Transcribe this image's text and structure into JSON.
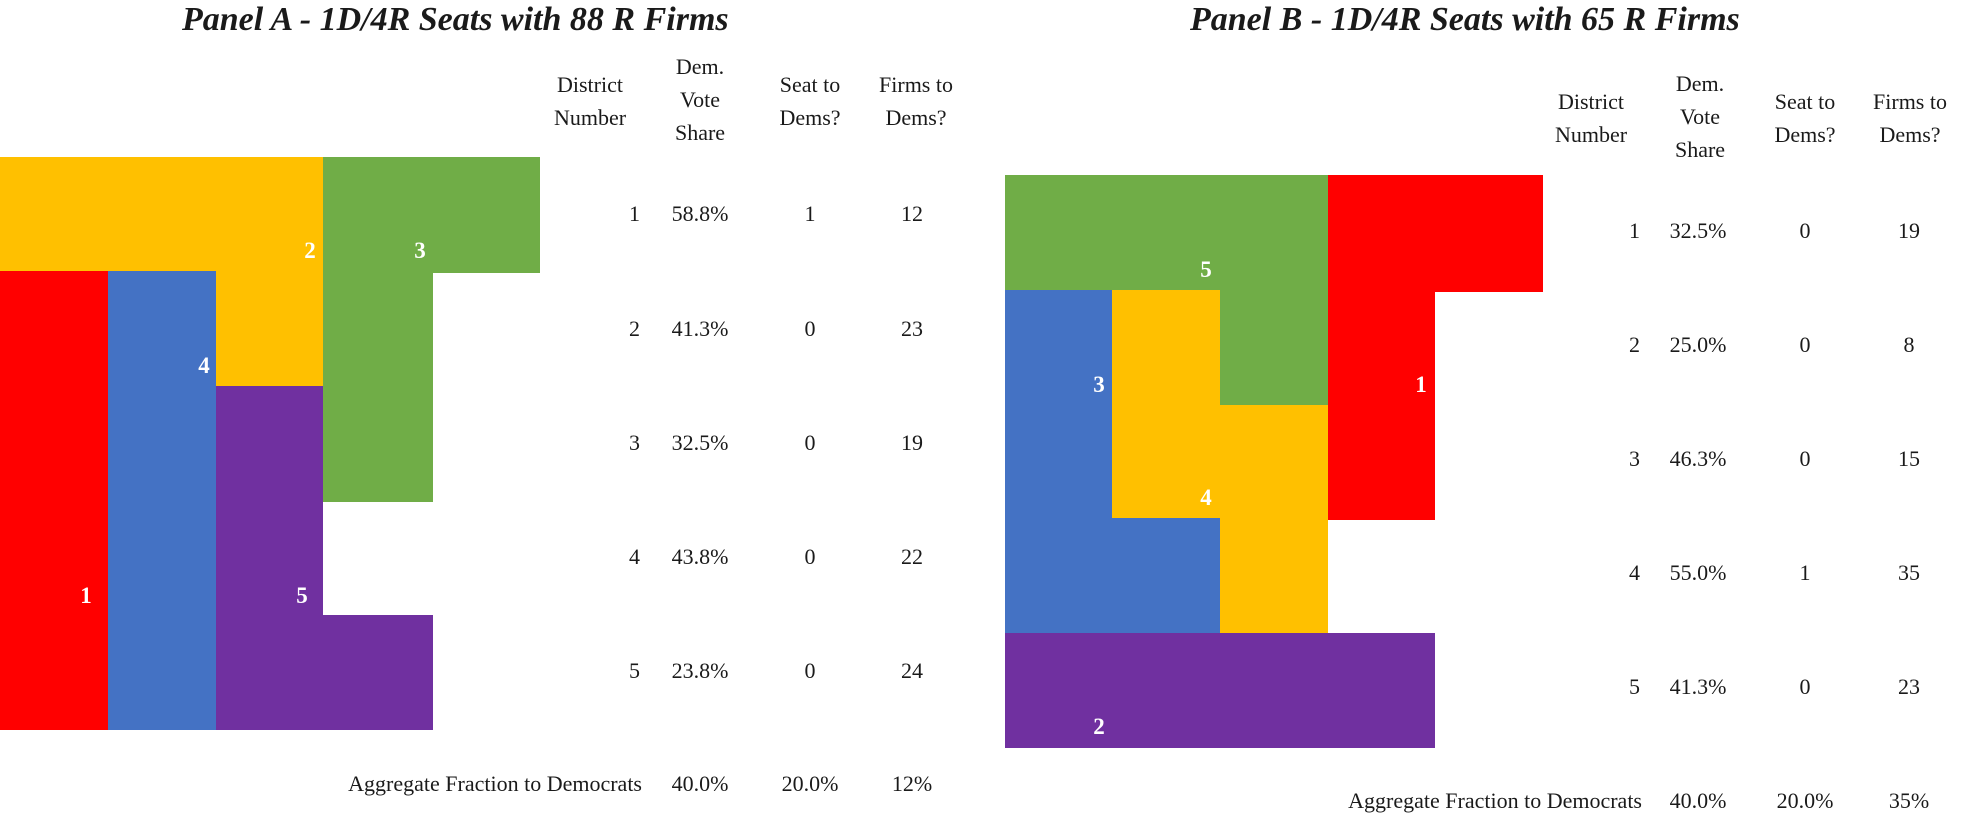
{
  "panels": [
    {
      "id": "A",
      "title": "Panel A - 1D/4R Seats with 88 R Firms",
      "headers": {
        "district": [
          "District",
          "Number"
        ],
        "vote": [
          "Dem.",
          "Vote",
          "Share"
        ],
        "seat": [
          "Seat to",
          "Dems?"
        ],
        "firms": [
          "Firms to",
          "Dems?"
        ]
      },
      "rows": [
        {
          "district": "1",
          "vote": "58.8%",
          "seat": "1",
          "firms": "12"
        },
        {
          "district": "2",
          "vote": "41.3%",
          "seat": "0",
          "firms": "23"
        },
        {
          "district": "3",
          "vote": "32.5%",
          "seat": "0",
          "firms": "19"
        },
        {
          "district": "4",
          "vote": "43.8%",
          "seat": "0",
          "firms": "22"
        },
        {
          "district": "5",
          "vote": "23.8%",
          "seat": "0",
          "firms": "24"
        }
      ],
      "aggregate": {
        "label": "Aggregate Fraction to Democrats",
        "vote": "40.0%",
        "seat": "20.0%",
        "firms": "12%"
      },
      "districts": [
        {
          "label": "1",
          "color": "#FF0000"
        },
        {
          "label": "2",
          "color": "#FFC000"
        },
        {
          "label": "3",
          "color": "#70AD47"
        },
        {
          "label": "4",
          "color": "#4472C4"
        },
        {
          "label": "5",
          "color": "#7030A0"
        }
      ]
    },
    {
      "id": "B",
      "title": "Panel B - 1D/4R Seats with 65 R Firms",
      "headers": {
        "district": [
          "District",
          "Number"
        ],
        "vote": [
          "Dem.",
          "Vote",
          "Share"
        ],
        "seat": [
          "Seat to",
          "Dems?"
        ],
        "firms": [
          "Firms to",
          "Dems?"
        ]
      },
      "rows": [
        {
          "district": "1",
          "vote": "32.5%",
          "seat": "0",
          "firms": "19"
        },
        {
          "district": "2",
          "vote": "25.0%",
          "seat": "0",
          "firms": "8"
        },
        {
          "district": "3",
          "vote": "46.3%",
          "seat": "0",
          "firms": "15"
        },
        {
          "district": "4",
          "vote": "55.0%",
          "seat": "1",
          "firms": "35"
        },
        {
          "district": "5",
          "vote": "41.3%",
          "seat": "0",
          "firms": "23"
        }
      ],
      "aggregate": {
        "label": "Aggregate Fraction to Democrats",
        "vote": "40.0%",
        "seat": "20.0%",
        "firms": "35%"
      },
      "districts": [
        {
          "label": "1",
          "color": "#FF0000"
        },
        {
          "label": "2",
          "color": "#7030A0"
        },
        {
          "label": "3",
          "color": "#4472C4"
        },
        {
          "label": "4",
          "color": "#FFC000"
        },
        {
          "label": "5",
          "color": "#70AD47"
        }
      ]
    }
  ]
}
